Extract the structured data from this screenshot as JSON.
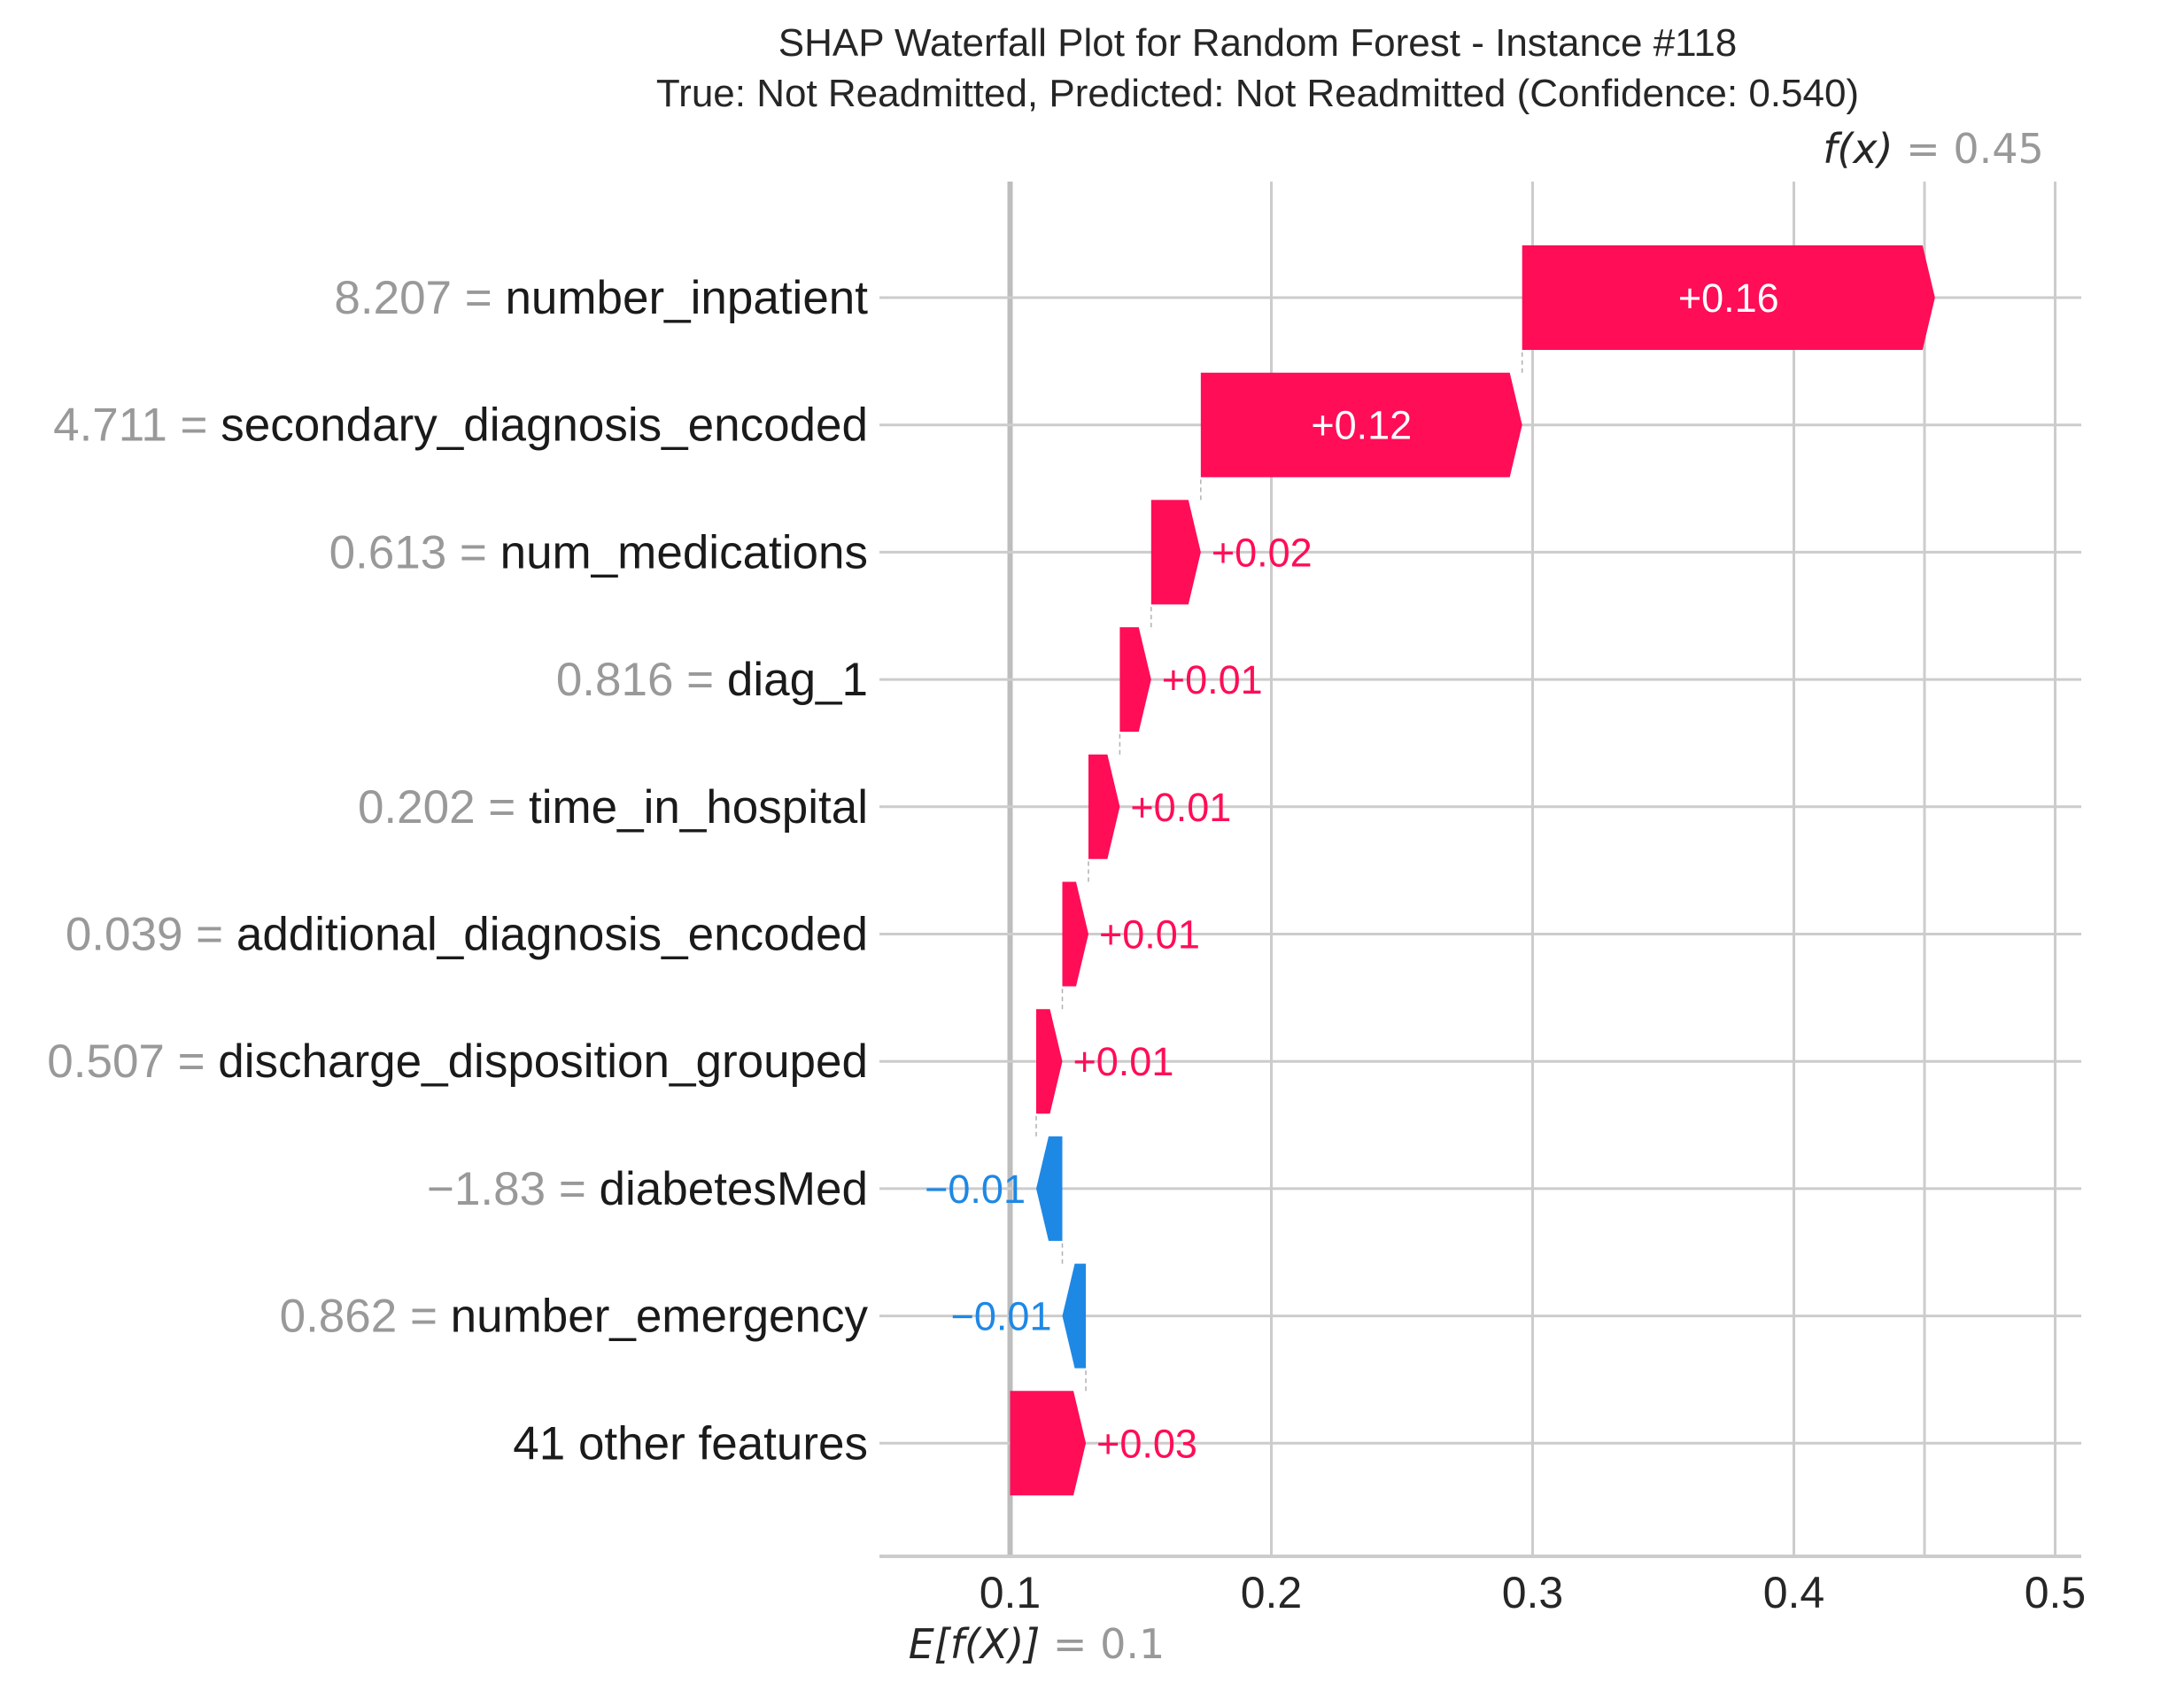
{
  "chart_data": {
    "type": "waterfall",
    "title": "SHAP Waterfall Plot for Random Forest - Instance #118",
    "subtitle": "True: Not Readmitted, Predicted: Not Readmitted (Confidence: 0.540)",
    "xlim": [
      0.05,
      0.51
    ],
    "xticks": [
      0.1,
      0.2,
      0.3,
      0.4,
      0.5
    ],
    "xtick_labels": [
      "0.1",
      "0.2",
      "0.3",
      "0.4",
      "0.5"
    ],
    "grid": true,
    "base_value": 0.1,
    "base_label": {
      "main": "E[f(X)]",
      "eq": " = 0.1"
    },
    "output_value": 0.45,
    "output_label": {
      "main": "f(x)",
      "eq": " = 0.45"
    },
    "colors": {
      "positive": "#ff0d57",
      "negative": "#1e88e5"
    },
    "features": [
      {
        "value": "8.207",
        "name": "number_inpatient",
        "shap": 0.158,
        "label": "+0.16"
      },
      {
        "value": "4.711",
        "name": "secondary_diagnosis_encoded",
        "shap": 0.123,
        "label": "+0.12"
      },
      {
        "value": "0.613",
        "name": "num_medications",
        "shap": 0.019,
        "label": "+0.02"
      },
      {
        "value": "0.816",
        "name": "diag_1",
        "shap": 0.012,
        "label": "+0.01"
      },
      {
        "value": "0.202",
        "name": "time_in_hospital",
        "shap": 0.012,
        "label": "+0.01"
      },
      {
        "value": "0.039",
        "name": "additional_diagnosis_encoded",
        "shap": 0.01,
        "label": "+0.01"
      },
      {
        "value": "0.507",
        "name": "discharge_disposition_grouped",
        "shap": 0.01,
        "label": "+0.01"
      },
      {
        "value": "−1.83",
        "name": "diabetesMed",
        "shap": -0.01,
        "label": "−0.01"
      },
      {
        "value": "0.862",
        "name": "number_emergency",
        "shap": -0.009,
        "label": "−0.01"
      },
      {
        "value": "",
        "name": "41 other features",
        "shap": 0.029,
        "label": "+0.03"
      }
    ]
  }
}
